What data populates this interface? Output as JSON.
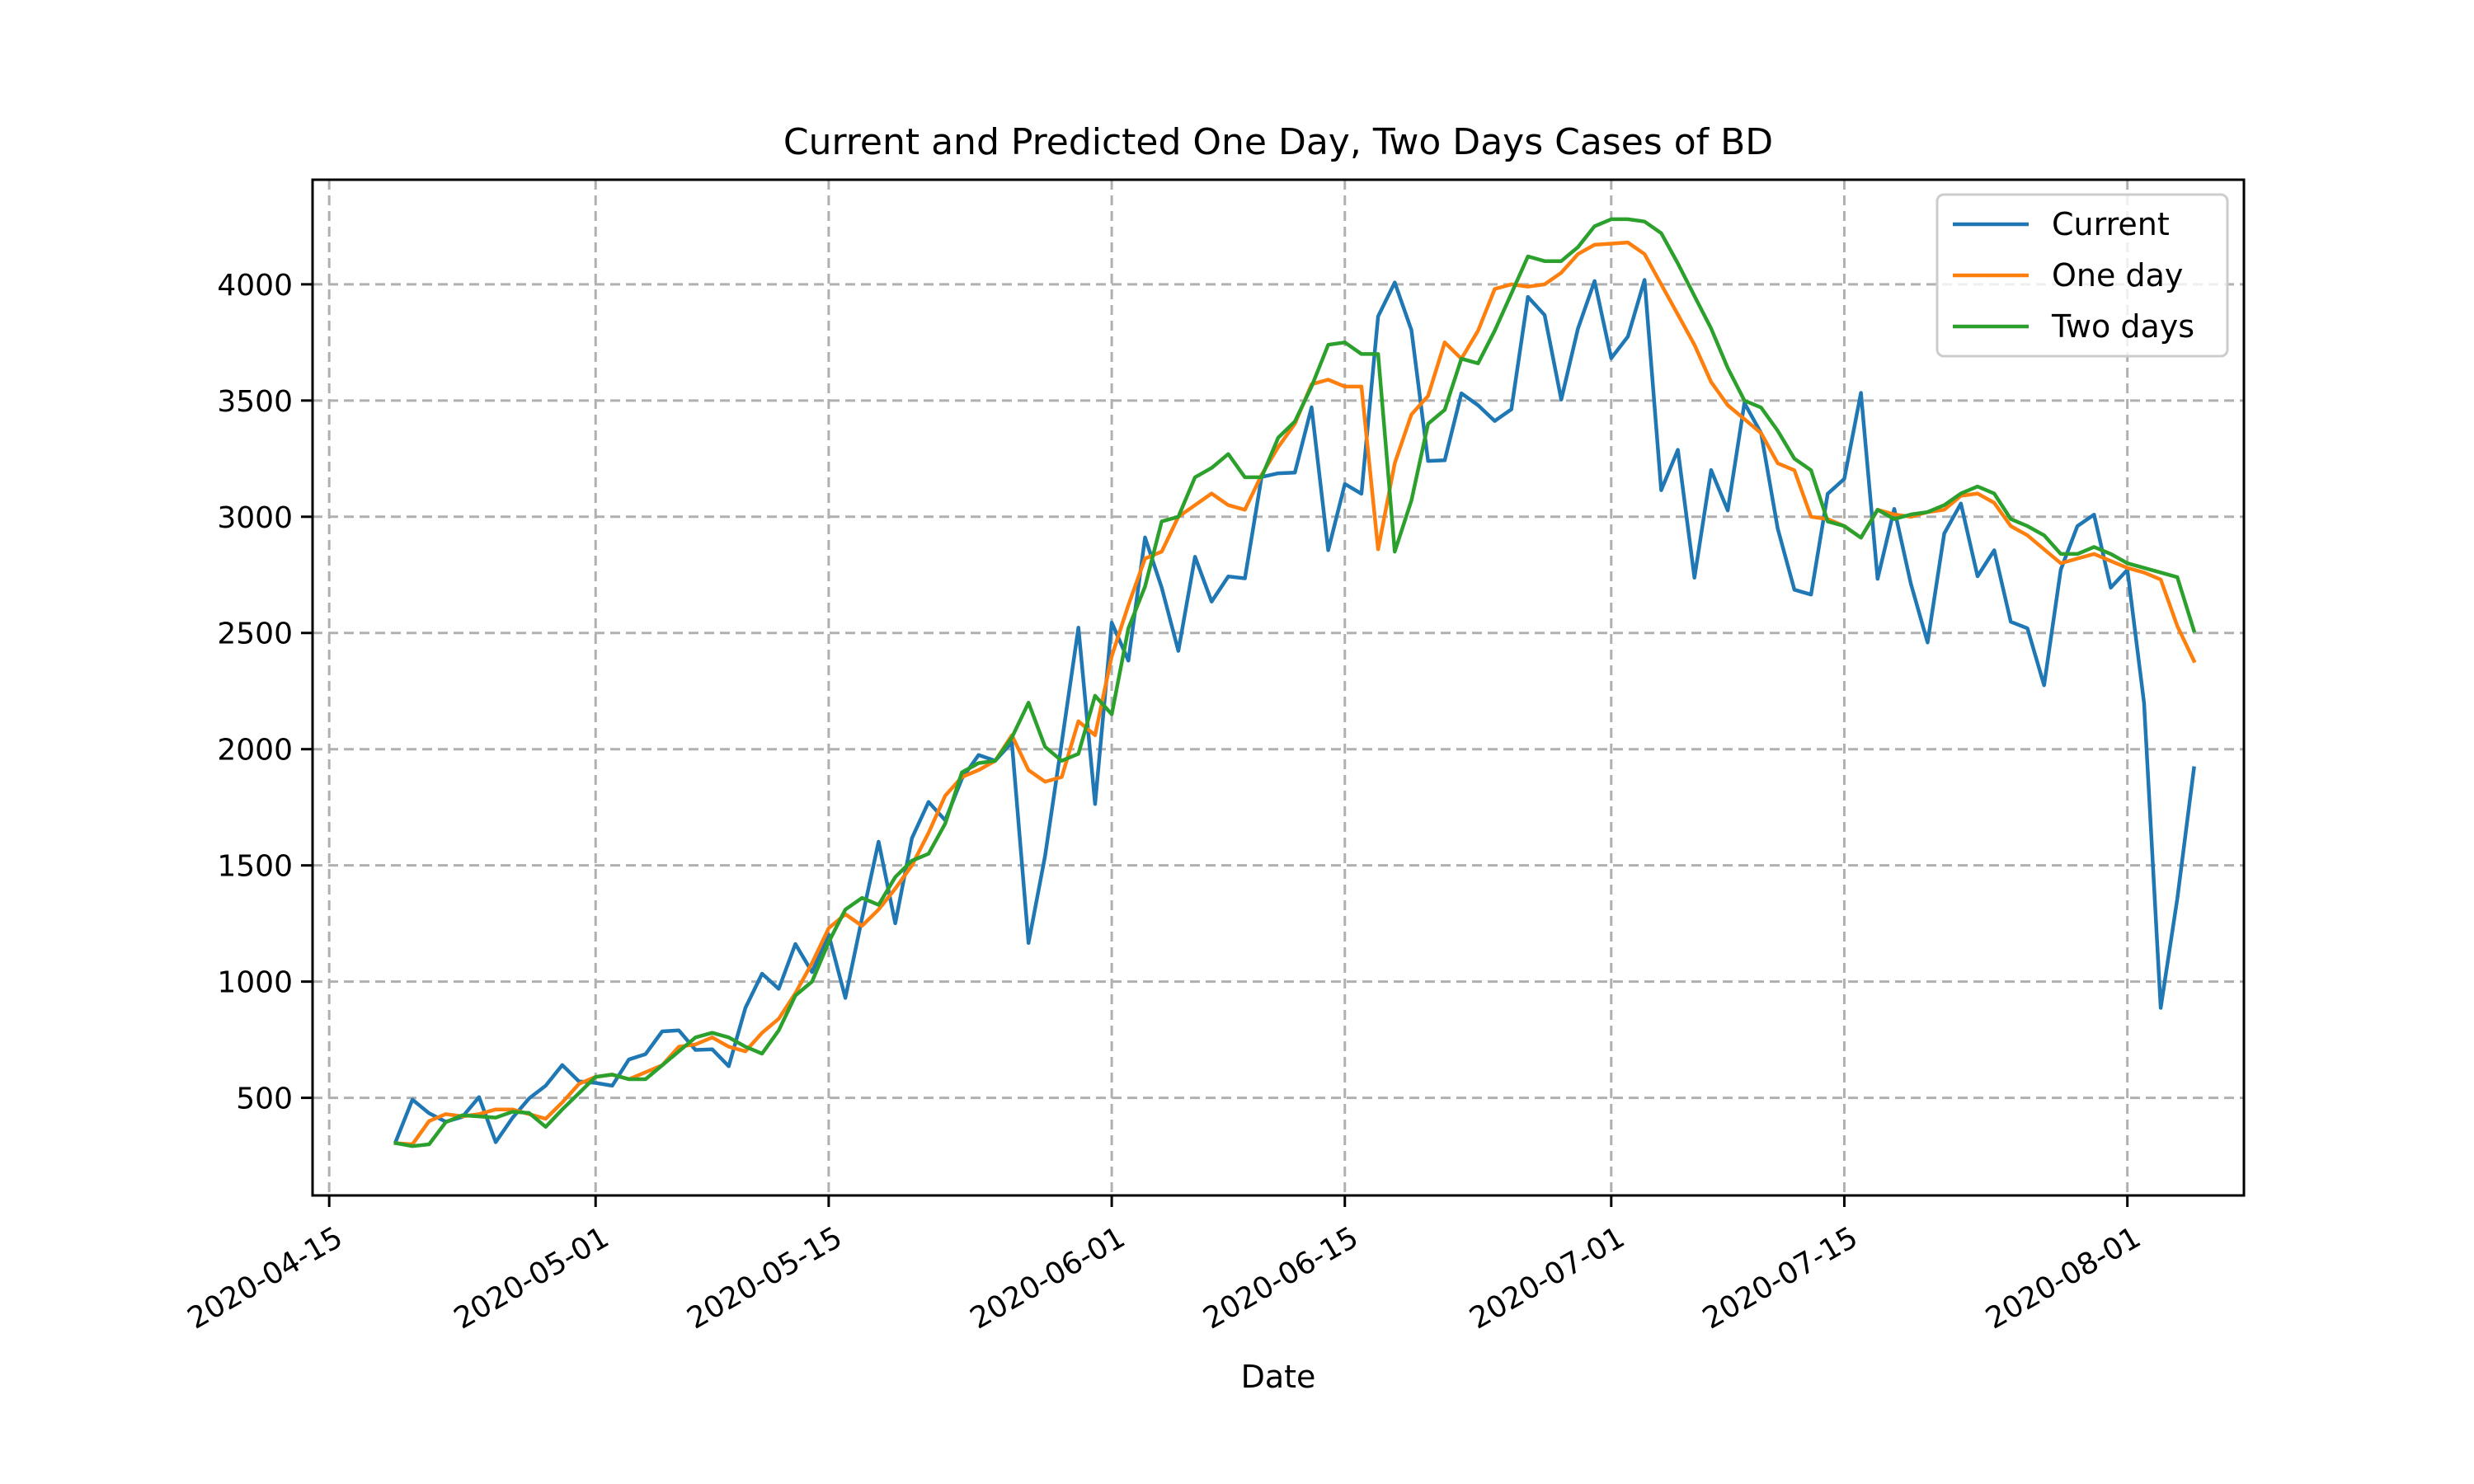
{
  "chart_data": {
    "type": "line",
    "title": "Current and Predicted One Day, Two Days Cases of BD",
    "xlabel": "Date",
    "ylabel": "",
    "x_start": "2020-04-19",
    "xlim": [
      "2020-04-14",
      "2020-08-08"
    ],
    "ylim": [
      80,
      4450
    ],
    "x_ticks": [
      "2020-04-15",
      "2020-05-01",
      "2020-05-15",
      "2020-06-01",
      "2020-06-15",
      "2020-07-01",
      "2020-07-15",
      "2020-08-01"
    ],
    "y_ticks": [
      500,
      1000,
      1500,
      2000,
      2500,
      3000,
      3500,
      4000
    ],
    "grid": true,
    "legend_position": "top-right",
    "series": [
      {
        "name": "Current",
        "color": "#1f77b4",
        "values": [
          312,
          492,
          434,
          397,
          418,
          503,
          309,
          413,
          497,
          552,
          641,
          571,
          564,
          552,
          665,
          688,
          786,
          790,
          706,
          709,
          636,
          887,
          1034,
          969,
          1162,
          1041,
          1202,
          930,
          1273,
          1602,
          1251,
          1617,
          1773,
          1694,
          1873,
          1975,
          1950,
          2029,
          1166,
          1541,
          2029,
          2523,
          1764,
          2545,
          2381,
          2911,
          2695,
          2423,
          2828,
          2635,
          2743,
          2735,
          3171,
          3187,
          3190,
          3471,
          2856,
          3141,
          3099,
          3862,
          4008,
          3803,
          3240,
          3243,
          3531,
          3480,
          3412,
          3462,
          3946,
          3868,
          3504,
          3809,
          4014,
          3682,
          3775,
          4019,
          3114,
          3288,
          2738,
          3201,
          3027,
          3489,
          3360,
          2949,
          2686,
          2665,
          3099,
          3163,
          3533,
          2733,
          3034,
          2711,
          2459,
          2928,
          3057,
          2744,
          2856,
          2548,
          2520,
          2275,
          2772,
          2960,
          3009,
          2695,
          2772,
          2199,
          887,
          1356,
          1918
        ]
      },
      {
        "name": "One day",
        "color": "#ff7f0e",
        "values": [
          305,
          300,
          400,
          430,
          420,
          430,
          450,
          450,
          430,
          410,
          480,
          560,
          590,
          600,
          580,
          610,
          640,
          720,
          730,
          760,
          720,
          700,
          780,
          840,
          950,
          1080,
          1230,
          1290,
          1240,
          1310,
          1400,
          1500,
          1640,
          1800,
          1880,
          1910,
          1950,
          2060,
          1910,
          1860,
          1880,
          2120,
          2060,
          2400,
          2620,
          2820,
          2850,
          3000,
          3050,
          3100,
          3050,
          3030,
          3180,
          3300,
          3400,
          3570,
          3590,
          3560,
          3560,
          2860,
          3230,
          3440,
          3520,
          3750,
          3680,
          3800,
          3980,
          4000,
          3990,
          4000,
          4050,
          4130,
          4170,
          4175,
          4180,
          4130,
          4000,
          3870,
          3740,
          3580,
          3480,
          3420,
          3360,
          3230,
          3200,
          3000,
          2990,
          2960,
          2910,
          3030,
          3010,
          3000,
          3020,
          3030,
          3090,
          3100,
          3060,
          2960,
          2920,
          2860,
          2800,
          2820,
          2840,
          2810,
          2780,
          2760,
          2730,
          2530,
          2380
        ]
      },
      {
        "name": "Two days",
        "color": "#2ca02c",
        "values": [
          305,
          292,
          300,
          395,
          425,
          420,
          415,
          440,
          435,
          375,
          450,
          520,
          590,
          600,
          580,
          580,
          640,
          700,
          760,
          780,
          760,
          720,
          690,
          790,
          940,
          1000,
          1170,
          1310,
          1360,
          1330,
          1450,
          1520,
          1550,
          1680,
          1900,
          1940,
          1950,
          2050,
          2200,
          2010,
          1950,
          1980,
          2230,
          2150,
          2520,
          2700,
          2980,
          3000,
          3170,
          3210,
          3270,
          3170,
          3170,
          3340,
          3410,
          3560,
          3740,
          3750,
          3700,
          3700,
          2850,
          3070,
          3400,
          3460,
          3680,
          3660,
          3800,
          3960,
          4120,
          4100,
          4100,
          4160,
          4250,
          4280,
          4280,
          4270,
          4220,
          4090,
          3950,
          3810,
          3640,
          3500,
          3470,
          3370,
          3250,
          3200,
          2980,
          2960,
          2910,
          3030,
          2990,
          3010,
          3020,
          3050,
          3100,
          3130,
          3100,
          2990,
          2960,
          2920,
          2840,
          2840,
          2870,
          2840,
          2800,
          2780,
          2760,
          2740,
          2510
        ]
      }
    ]
  }
}
